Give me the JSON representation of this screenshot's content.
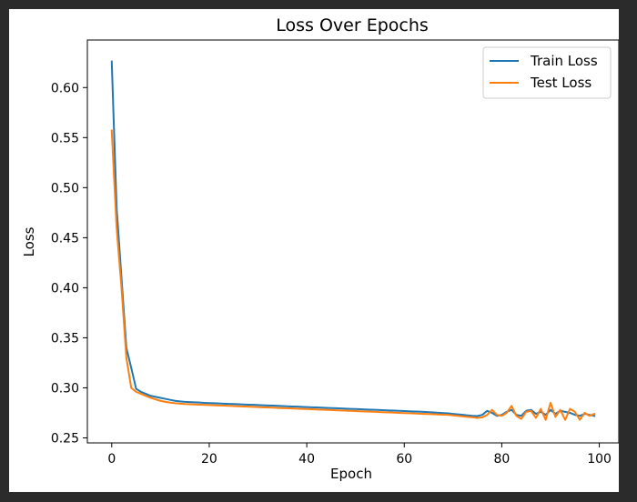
{
  "chart_data": {
    "type": "line",
    "title": "Loss Over Epochs",
    "xlabel": "Epoch",
    "ylabel": "Loss",
    "xlim": [
      -5,
      104
    ],
    "ylim": [
      0.245,
      0.6475
    ],
    "xticks": [
      0,
      20,
      40,
      60,
      80,
      100
    ],
    "yticks": [
      0.25,
      0.3,
      0.35,
      0.4,
      0.45,
      0.5,
      0.55,
      0.6
    ],
    "ytick_labels": [
      "0.25",
      "0.30",
      "0.35",
      "0.40",
      "0.45",
      "0.50",
      "0.55",
      "0.60"
    ],
    "grid": false,
    "legend": "top-right",
    "series": [
      {
        "name": "Train Loss",
        "color": "#1f77b4",
        "x": [
          0,
          1,
          2,
          3,
          4,
          5,
          6,
          7,
          8,
          9,
          10,
          11,
          12,
          13,
          14,
          15,
          16,
          17,
          18,
          19,
          20,
          21,
          22,
          23,
          24,
          25,
          26,
          27,
          28,
          29,
          30,
          31,
          32,
          33,
          34,
          35,
          36,
          37,
          38,
          39,
          40,
          41,
          42,
          43,
          44,
          45,
          46,
          47,
          48,
          49,
          50,
          51,
          52,
          53,
          54,
          55,
          56,
          57,
          58,
          59,
          60,
          61,
          62,
          63,
          64,
          65,
          66,
          67,
          68,
          69,
          70,
          71,
          72,
          73,
          74,
          75,
          76,
          77,
          78,
          79,
          80,
          81,
          82,
          83,
          84,
          85,
          86,
          87,
          88,
          89,
          90,
          91,
          92,
          93,
          94,
          95,
          96,
          97,
          98,
          99
        ],
        "values": [
          0.626,
          0.48,
          0.41,
          0.34,
          0.32,
          0.299,
          0.296,
          0.294,
          0.292,
          0.291,
          0.29,
          0.289,
          0.288,
          0.287,
          0.2865,
          0.286,
          0.2858,
          0.2855,
          0.2853,
          0.285,
          0.2848,
          0.2846,
          0.2844,
          0.2842,
          0.284,
          0.2838,
          0.2836,
          0.2834,
          0.2832,
          0.283,
          0.2828,
          0.2826,
          0.2824,
          0.2822,
          0.282,
          0.2818,
          0.2816,
          0.2814,
          0.2812,
          0.281,
          0.2808,
          0.2806,
          0.2804,
          0.2802,
          0.28,
          0.2798,
          0.2796,
          0.2794,
          0.2792,
          0.279,
          0.2788,
          0.2786,
          0.2784,
          0.2782,
          0.278,
          0.2778,
          0.2776,
          0.2774,
          0.2772,
          0.277,
          0.2768,
          0.2766,
          0.2764,
          0.2762,
          0.276,
          0.2757,
          0.2754,
          0.2751,
          0.2748,
          0.2745,
          0.274,
          0.2735,
          0.273,
          0.2725,
          0.272,
          0.2718,
          0.273,
          0.277,
          0.275,
          0.272,
          0.273,
          0.276,
          0.278,
          0.273,
          0.272,
          0.277,
          0.278,
          0.274,
          0.276,
          0.273,
          0.278,
          0.274,
          0.277,
          0.276,
          0.275,
          0.273,
          0.272,
          0.274,
          0.273,
          0.272
        ]
      },
      {
        "name": "Test Loss",
        "color": "#ff7f0e",
        "x": [
          0,
          1,
          2,
          3,
          4,
          5,
          6,
          7,
          8,
          9,
          10,
          11,
          12,
          13,
          14,
          15,
          16,
          17,
          18,
          19,
          20,
          21,
          22,
          23,
          24,
          25,
          26,
          27,
          28,
          29,
          30,
          31,
          32,
          33,
          34,
          35,
          36,
          37,
          38,
          39,
          40,
          41,
          42,
          43,
          44,
          45,
          46,
          47,
          48,
          49,
          50,
          51,
          52,
          53,
          54,
          55,
          56,
          57,
          58,
          59,
          60,
          61,
          62,
          63,
          64,
          65,
          66,
          67,
          68,
          69,
          70,
          71,
          72,
          73,
          74,
          75,
          76,
          77,
          78,
          79,
          80,
          81,
          82,
          83,
          84,
          85,
          86,
          87,
          88,
          89,
          90,
          91,
          92,
          93,
          94,
          95,
          96,
          97,
          98,
          99
        ],
        "values": [
          0.557,
          0.46,
          0.4,
          0.33,
          0.3,
          0.296,
          0.294,
          0.292,
          0.29,
          0.2885,
          0.287,
          0.286,
          0.2852,
          0.2846,
          0.2842,
          0.2838,
          0.2836,
          0.2834,
          0.2832,
          0.283,
          0.2828,
          0.2826,
          0.2824,
          0.2822,
          0.282,
          0.2818,
          0.2816,
          0.2814,
          0.2812,
          0.281,
          0.2808,
          0.2806,
          0.2804,
          0.2802,
          0.28,
          0.2798,
          0.2796,
          0.2794,
          0.2792,
          0.279,
          0.2788,
          0.2786,
          0.2784,
          0.2782,
          0.278,
          0.2778,
          0.2776,
          0.2774,
          0.2772,
          0.277,
          0.2768,
          0.2766,
          0.2764,
          0.2762,
          0.276,
          0.2758,
          0.2756,
          0.2754,
          0.2752,
          0.275,
          0.2748,
          0.2746,
          0.2744,
          0.2742,
          0.274,
          0.2738,
          0.2736,
          0.2734,
          0.2732,
          0.273,
          0.2725,
          0.272,
          0.2715,
          0.271,
          0.2705,
          0.27,
          0.2705,
          0.273,
          0.278,
          0.273,
          0.272,
          0.275,
          0.282,
          0.272,
          0.269,
          0.276,
          0.277,
          0.27,
          0.279,
          0.268,
          0.285,
          0.271,
          0.278,
          0.268,
          0.279,
          0.276,
          0.268,
          0.275,
          0.272,
          0.274
        ]
      }
    ]
  }
}
